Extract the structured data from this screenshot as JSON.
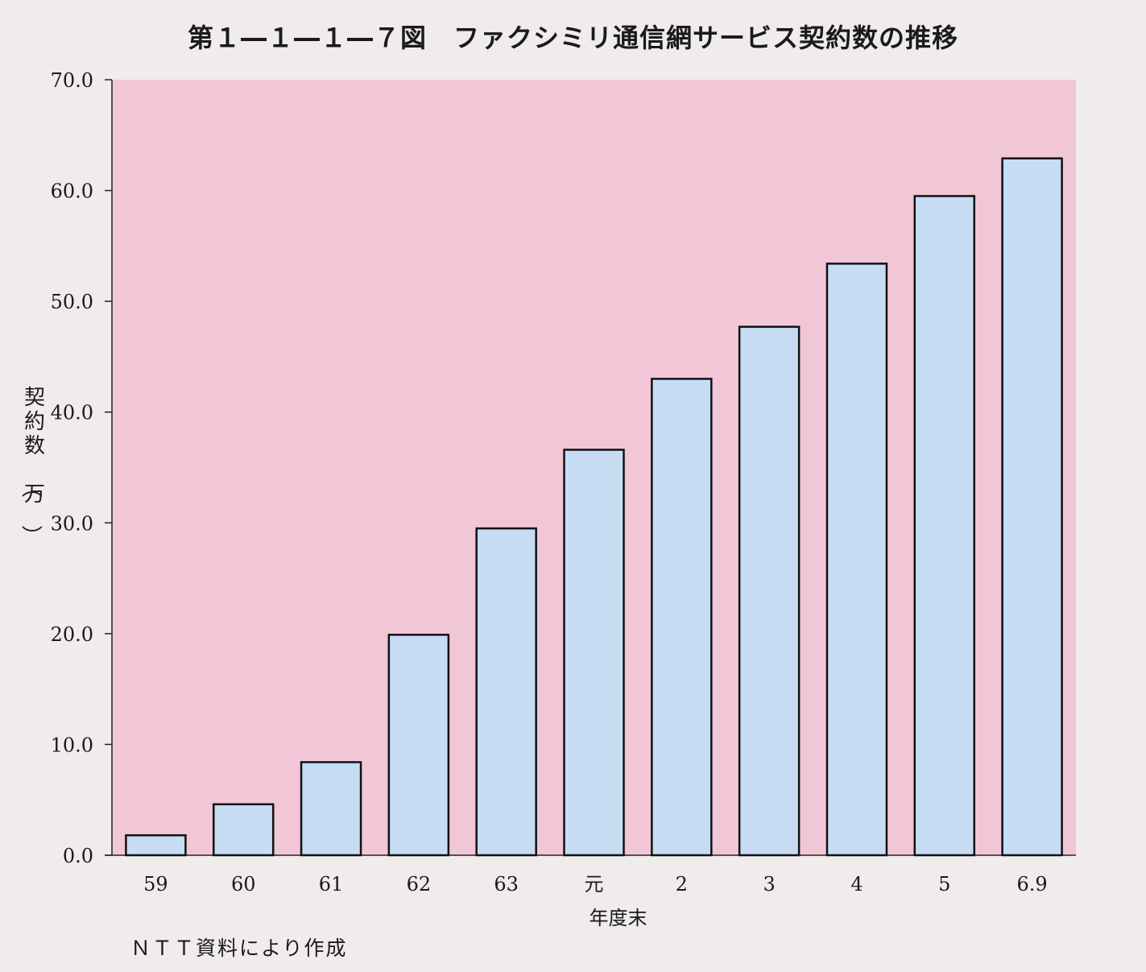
{
  "title": "第１―１―１―７図　ファクシミリ通信網サービス契約数の推移",
  "source_note": "ＮＴＴ資料により作成",
  "colors": {
    "plot_background": "#f1c6d7",
    "bar_fill": "#c5dcf3",
    "bar_stroke": "#111111",
    "page_background": "#efeceb"
  },
  "chart_data": {
    "type": "bar",
    "title": "第１―１―１―７図　ファクシミリ通信網サービス契約数の推移",
    "xlabel": "年度末",
    "ylabel": "契約数（万）",
    "categories": [
      "59",
      "60",
      "61",
      "62",
      "63",
      "元",
      "2",
      "3",
      "4",
      "5",
      "6.9"
    ],
    "values": [
      1.8,
      4.6,
      8.4,
      19.9,
      29.5,
      36.6,
      43.0,
      47.7,
      53.4,
      59.5,
      62.9
    ],
    "ylim": [
      0,
      70
    ],
    "yticks": [
      "0.0",
      "10.0",
      "20.0",
      "30.0",
      "40.0",
      "50.0",
      "60.0",
      "70.0"
    ],
    "grid": false,
    "legend": "none"
  }
}
